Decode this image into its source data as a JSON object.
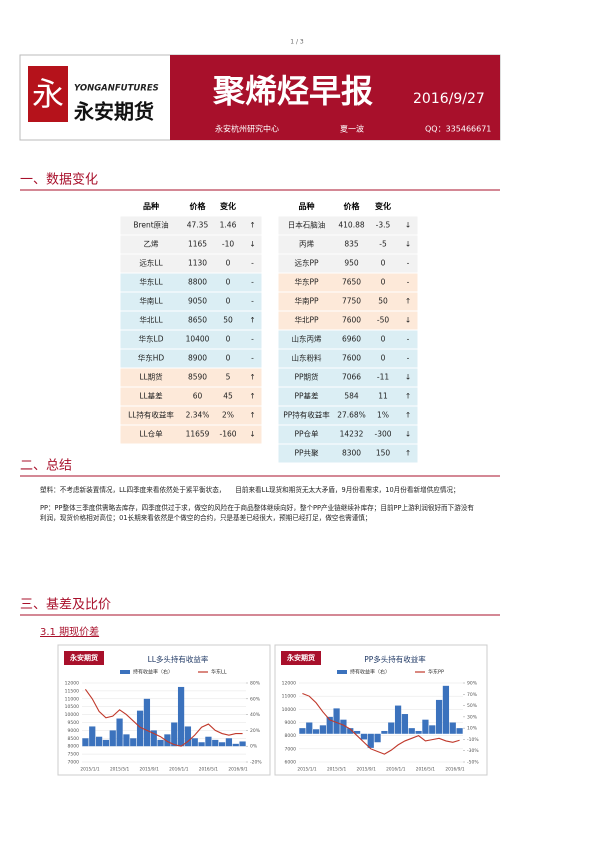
{
  "header": {
    "page_number": "1 / 3",
    "logo_mark": "永",
    "logo_en": "YONGANFUTURES",
    "logo_cn": "永安期货",
    "title": "聚烯烃早报",
    "date": "2016/9/27",
    "org": "永安杭州研究中心",
    "author": "夏一波",
    "qq": "QQ：335466671"
  },
  "sections": [
    "一、数据变化",
    "二、总结",
    "三、基差及比价"
  ],
  "table": {
    "columns": [
      "品种",
      "价格",
      "变化"
    ],
    "left": [
      [
        "Brent原油",
        "47.35",
        "1.46",
        "↑"
      ],
      [
        "乙烯",
        "1165",
        "-10",
        "↓"
      ],
      [
        "远东LL",
        "1130",
        "0",
        "-"
      ],
      [
        "华东LL",
        "8800",
        "0",
        "-"
      ],
      [
        "华南LL",
        "9050",
        "0",
        "-"
      ],
      [
        "华北LL",
        "8650",
        "50",
        "↑"
      ],
      [
        "华东LD",
        "10400",
        "0",
        "-"
      ],
      [
        "华东HD",
        "8900",
        "0",
        "-"
      ],
      [
        "LL期货",
        "8590",
        "5",
        "↑"
      ],
      [
        "LL基差",
        "60",
        "45",
        "↑"
      ],
      [
        "LL持有收益率",
        "2.34%",
        "2%",
        "↑"
      ],
      [
        "LL仓单",
        "11659",
        "-160",
        "↓"
      ]
    ],
    "right": [
      [
        "日本石脑油",
        "410.88",
        "-3.5",
        "↓"
      ],
      [
        "丙烯",
        "835",
        "-5",
        "↓"
      ],
      [
        "远东PP",
        "950",
        "0",
        "-"
      ],
      [
        "华东PP",
        "7650",
        "0",
        "-"
      ],
      [
        "华南PP",
        "7750",
        "50",
        "↑"
      ],
      [
        "华北PP",
        "7600",
        "-50",
        "↓"
      ],
      [
        "山东丙烯",
        "6960",
        "0",
        "-"
      ],
      [
        "山东粉料",
        "7600",
        "0",
        "-"
      ],
      [
        "PP期货",
        "7066",
        "-11",
        "↓"
      ],
      [
        "PP基差",
        "584",
        "11",
        "↑"
      ],
      [
        "PP持有收益率",
        "27.68%",
        "1%",
        "↑"
      ],
      [
        "PP仓单",
        "14232",
        "-300",
        "↓"
      ],
      [
        "PP共聚",
        "8300",
        "150",
        "↑"
      ]
    ]
  },
  "summary": {
    "paragraphs": [
      "塑料：不考虑新装置情况，LL四季度来看依然处于紧平衡状态，　　目前来看LL现货和期货无太大矛盾，9月份看需求，10月份看新增供应情况；",
      "PP：PP整体三季度供需略去库存，四季度供过于求，做空的风险在于商品整体继续向好，整个PP产业链继续补库存；目前PP上游利润很好而下游没有利润，现货价格相对高位；01长期来看依然是个做空的合约，只是基差已经很大，预期已经打足，做空也需谨慎；"
    ]
  },
  "subsection": "3.1 期现价差",
  "charts": [
    {
      "type": "bar-line",
      "logo": "永安期货",
      "title": "LL多头持有收益率",
      "x_labels": [
        "2015/1/1",
        "2015/5/1",
        "2015/9/1",
        "2016/1/1",
        "2016/5/1",
        "2016/9/1"
      ],
      "ylim": [
        7000,
        12000
      ],
      "yticks": [
        7000,
        7500,
        8000,
        8500,
        9000,
        9500,
        10000,
        10500,
        11000,
        11500,
        12000
      ],
      "y2lim": [
        -20,
        80
      ],
      "y2ticks": [
        {
          "value": -20,
          "label": "-20%"
        },
        {
          "value": 0,
          "label": "0%"
        },
        {
          "value": 20,
          "label": "20%"
        },
        {
          "value": 40,
          "label": "40%"
        },
        {
          "value": 60,
          "label": "60%"
        },
        {
          "value": 80,
          "label": "80%"
        }
      ],
      "series": [
        {
          "name": "持有收益率（右）",
          "color": "#3b72bd",
          "axis": "y2",
          "values": [
            10,
            25,
            12,
            8,
            20,
            35,
            15,
            10,
            45,
            60,
            20,
            8,
            15,
            30,
            75,
            25,
            10,
            5,
            12,
            8,
            5,
            10,
            3,
            6
          ]
        },
        {
          "name": "华东LL",
          "color": "#c0392b",
          "values": [
            11600,
            11000,
            10200,
            9800,
            9900,
            10300,
            10000,
            9600,
            9200,
            9000,
            8800,
            8600,
            8300,
            8100,
            8000,
            8300,
            8700,
            9200,
            9400,
            9000,
            8800,
            8700,
            8800,
            8800
          ]
        }
      ]
    },
    {
      "type": "bar-line",
      "logo": "永安期货",
      "title": "PP多头持有收益率",
      "x_labels": [
        "2015/1/1",
        "2015/5/1",
        "2015/9/1",
        "2016/1/1",
        "2016/5/1",
        "2016/9/1"
      ],
      "ylim": [
        6000,
        12000
      ],
      "yticks": [
        6000,
        7000,
        8000,
        9000,
        10000,
        11000,
        12000
      ],
      "y2lim": [
        -50,
        90
      ],
      "y2ticks": [
        {
          "value": -50,
          "label": "-50%"
        },
        {
          "value": -30,
          "label": "-30%"
        },
        {
          "value": -10,
          "label": "-10%"
        },
        {
          "value": 10,
          "label": "10%"
        },
        {
          "value": 30,
          "label": "30%"
        },
        {
          "value": 50,
          "label": "50%"
        },
        {
          "value": 70,
          "label": "70%"
        },
        {
          "value": 90,
          "label": "90%"
        }
      ],
      "series": [
        {
          "name": "持有收益率（右）",
          "color": "#3b72bd",
          "axis": "y2",
          "values": [
            10,
            20,
            8,
            15,
            30,
            45,
            25,
            10,
            5,
            -10,
            -25,
            -15,
            5,
            20,
            50,
            35,
            10,
            5,
            25,
            15,
            60,
            85,
            20,
            10
          ]
        },
        {
          "name": "华东PP",
          "color": "#c0392b",
          "values": [
            11200,
            11000,
            10500,
            9800,
            9200,
            9000,
            8800,
            8500,
            8000,
            7500,
            7000,
            6800,
            6600,
            6900,
            7300,
            7600,
            7800,
            8000,
            7600,
            7700,
            7800,
            7600,
            7500,
            7650
          ]
        }
      ]
    }
  ]
}
